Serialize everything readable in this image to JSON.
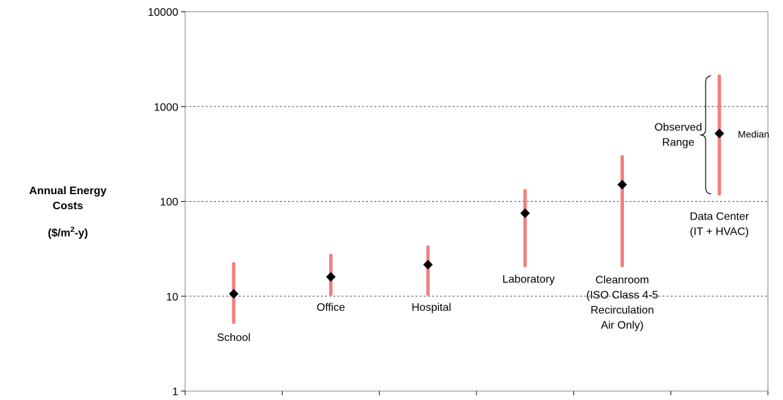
{
  "chart_data": {
    "type": "range",
    "title": "",
    "ylabel_line1": "Annual Energy",
    "ylabel_line2": "Costs",
    "ylabel_unit_prefix": "($/m",
    "ylabel_unit_sup": "2",
    "ylabel_unit_suffix": "-y)",
    "yscale": "log",
    "ylim": [
      1,
      10000
    ],
    "yticks": [
      "1",
      "10",
      "100",
      "1000",
      "10000"
    ],
    "grid": "horizontal dashed at 10, 100, 1000",
    "range_color": "#f08080",
    "marker_color": "#000000",
    "categories": [
      {
        "label": [
          "School"
        ],
        "low": 5.3,
        "high": 22,
        "median": 10.6
      },
      {
        "label": [
          "Office"
        ],
        "low": 10.5,
        "high": 27,
        "median": 16
      },
      {
        "label": [
          "Hospital"
        ],
        "low": 10.5,
        "high": 33,
        "median": 21.5
      },
      {
        "label": [
          "Laboratory"
        ],
        "low": 21,
        "high": 130,
        "median": 75
      },
      {
        "label": [
          "Cleanroom",
          "(ISO Class 4-5",
          "Recirculation",
          "Air Only)"
        ],
        "low": 21,
        "high": 295,
        "median": 150
      },
      {
        "label": [
          "Data Center",
          "(IT + HVAC)"
        ],
        "low": 120,
        "high": 2100,
        "median": 520
      }
    ],
    "annotations": {
      "range_line1": "Observed",
      "range_line2": "Range",
      "median": "Median"
    }
  }
}
